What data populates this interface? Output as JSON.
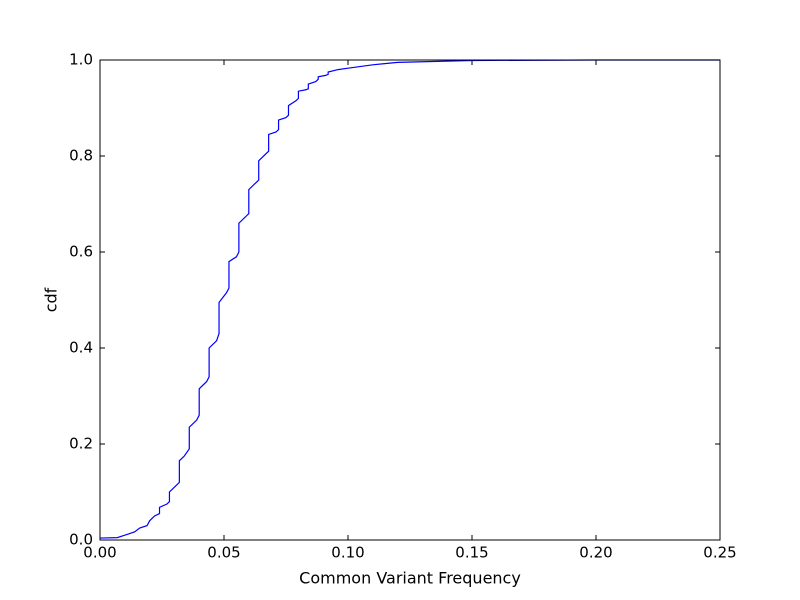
{
  "chart_data": {
    "type": "line",
    "xlabel": "Common Variant Frequency",
    "ylabel": "cdf",
    "x": [
      0,
      0.007,
      0.01,
      0.014,
      0.016,
      0.019,
      0.02,
      0.022,
      0.024,
      0.024,
      0.027,
      0.028,
      0.028,
      0.03,
      0.032,
      0.032,
      0.034,
      0.036,
      0.036,
      0.039,
      0.04,
      0.04,
      0.043,
      0.044,
      0.044,
      0.047,
      0.048,
      0.048,
      0.051,
      0.052,
      0.052,
      0.055,
      0.056,
      0.056,
      0.059,
      0.06,
      0.06,
      0.063,
      0.064,
      0.064,
      0.067,
      0.068,
      0.068,
      0.071,
      0.072,
      0.072,
      0.075,
      0.076,
      0.076,
      0.079,
      0.08,
      0.08,
      0.083,
      0.084,
      0.084,
      0.087,
      0.088,
      0.088,
      0.091,
      0.092,
      0.092,
      0.096,
      0.1,
      0.11,
      0.12,
      0.15,
      0.2,
      0.25
    ],
    "series": [
      {
        "color": "#0000ff",
        "values": [
          0.004,
          0.005,
          0.01,
          0.017,
          0.025,
          0.03,
          0.04,
          0.05,
          0.055,
          0.068,
          0.075,
          0.08,
          0.1,
          0.11,
          0.12,
          0.165,
          0.175,
          0.19,
          0.235,
          0.25,
          0.26,
          0.315,
          0.33,
          0.34,
          0.4,
          0.415,
          0.43,
          0.495,
          0.515,
          0.525,
          0.58,
          0.59,
          0.6,
          0.66,
          0.675,
          0.68,
          0.73,
          0.745,
          0.75,
          0.79,
          0.805,
          0.81,
          0.845,
          0.85,
          0.855,
          0.875,
          0.88,
          0.885,
          0.905,
          0.915,
          0.92,
          0.935,
          0.938,
          0.94,
          0.95,
          0.955,
          0.96,
          0.965,
          0.968,
          0.97,
          0.975,
          0.98,
          0.983,
          0.99,
          0.995,
          0.999,
          1,
          1
        ]
      }
    ],
    "xlim": [
      0,
      0.25
    ],
    "xticks": [
      {
        "value": 0,
        "label": "0.00"
      },
      {
        "value": 0.05,
        "label": "0.05"
      },
      {
        "value": 0.1,
        "label": "0.10"
      },
      {
        "value": 0.15,
        "label": "0.15"
      },
      {
        "value": 0.2,
        "label": "0.20"
      },
      {
        "value": 0.25,
        "label": "0.25"
      }
    ],
    "ylim": [
      0,
      1
    ],
    "yticks": [
      {
        "value": 0,
        "label": "0.0"
      },
      {
        "value": 0.2,
        "label": "0.2"
      },
      {
        "value": 0.4,
        "label": "0.4"
      },
      {
        "value": 0.6,
        "label": "0.6"
      },
      {
        "value": 0.8,
        "label": "0.8"
      },
      {
        "value": 1,
        "label": "1.0"
      }
    ],
    "grid": false
  }
}
